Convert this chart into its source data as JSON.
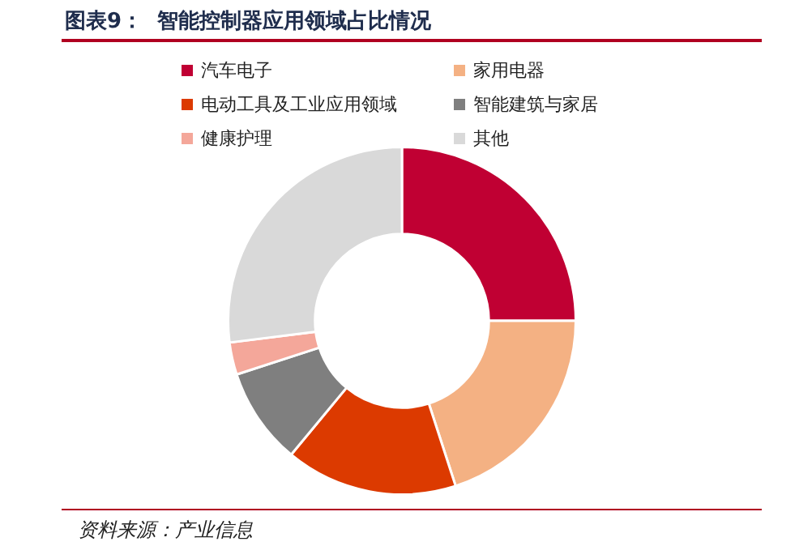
{
  "chart_data": {
    "type": "donut",
    "title": "图表9：  智能控制器应用领域占比情况",
    "categories": [
      "汽车电子",
      "家用电器",
      "电动工具及工业应用领域",
      "智能建筑与家居",
      "健康护理",
      "其他"
    ],
    "values": [
      25,
      20,
      16,
      9,
      3,
      27
    ],
    "colors": [
      "#c00033",
      "#f4b183",
      "#dc3a00",
      "#7f7f7f",
      "#f4a79a",
      "#d9d9d9"
    ],
    "legend": "top",
    "annotations": [
      "资料来源：产业信息"
    ]
  }
}
